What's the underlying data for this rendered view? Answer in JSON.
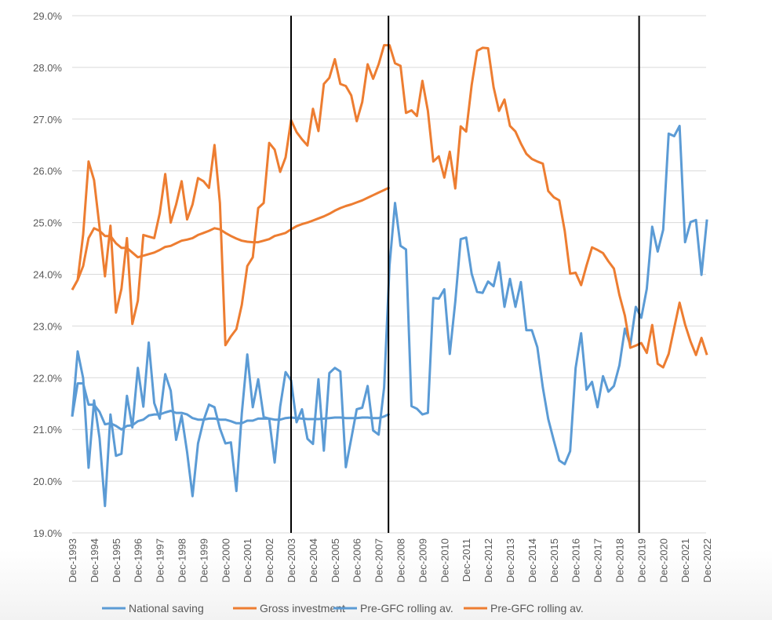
{
  "chart_data": {
    "type": "line",
    "title": "",
    "xlabel": "",
    "ylabel": "",
    "ylim": [
      19,
      29
    ],
    "y_ticks": [
      "19.0%",
      "20.0%",
      "21.0%",
      "22.0%",
      "23.0%",
      "24.0%",
      "25.0%",
      "26.0%",
      "27.0%",
      "28.0%",
      "29.0%"
    ],
    "x_frequency": "quarterly, Dec-1993 to Dec-2022",
    "x_tick_labels": [
      "Dec-1993",
      "Dec-1994",
      "Dec-1995",
      "Dec-1996",
      "Dec-1997",
      "Dec-1998",
      "Dec-1999",
      "Dec-2000",
      "Dec-2001",
      "Dec-2002",
      "Dec-2003",
      "Dec-2004",
      "Dec-2005",
      "Dec-2006",
      "Dec-2007",
      "Dec-2008",
      "Dec-2009",
      "Dec-2010",
      "Dec-2011",
      "Dec-2012",
      "Dec-2013",
      "Dec-2014",
      "Dec-2015",
      "Dec-2016",
      "Dec-2017",
      "Dec-2018",
      "Dec-2019",
      "Dec-2020",
      "Dec-2021",
      "Dec-2022"
    ],
    "grid": "horizontal",
    "legend_position": "bottom",
    "vertical_markers_quarter_index": [
      40,
      57.8,
      103.6
    ],
    "series": [
      {
        "name": "National saving",
        "color": "#5B9BD5",
        "values": [
          21.25,
          22.51,
          21.99,
          20.26,
          21.56,
          20.83,
          19.52,
          21.29,
          20.49,
          20.53,
          21.65,
          21.04,
          22.19,
          21.44,
          22.68,
          21.51,
          21.21,
          22.07,
          21.75,
          20.8,
          21.27,
          20.56,
          19.71,
          20.73,
          21.17,
          21.48,
          21.43,
          21.02,
          20.73,
          20.75,
          19.81,
          21.31,
          22.45,
          21.43,
          21.97,
          21.24,
          21.21,
          20.36,
          21.44,
          22.11,
          21.95,
          21.14,
          21.39,
          20.82,
          20.72,
          21.97,
          20.59,
          22.09,
          22.19,
          22.12,
          20.27,
          20.82,
          21.39,
          21.42,
          21.84,
          20.98,
          20.9,
          21.81,
          24.17,
          25.38,
          24.55,
          24.48,
          21.45,
          21.4,
          21.29,
          21.32,
          23.54,
          23.53,
          23.71,
          22.46,
          23.47,
          24.68,
          24.71,
          24.01,
          23.66,
          23.64,
          23.86,
          23.77,
          24.23,
          23.37,
          23.91,
          23.37,
          23.85,
          22.92,
          22.92,
          22.59,
          21.81,
          21.2,
          20.79,
          20.4,
          20.33,
          20.58,
          22.19,
          22.86,
          21.77,
          21.92,
          21.43,
          22.03,
          21.73,
          21.84,
          22.24,
          22.95,
          22.63,
          23.37,
          23.16,
          23.72,
          24.92,
          24.44,
          24.86,
          26.72,
          26.67,
          26.87,
          24.62,
          25.01,
          25.05,
          23.99,
          25.06
        ]
      },
      {
        "name": "Gross investment",
        "color": "#ED7D31",
        "values": [
          23.7,
          23.89,
          24.77,
          26.18,
          25.82,
          24.91,
          23.96,
          24.94,
          23.26,
          23.72,
          24.7,
          23.04,
          23.49,
          24.76,
          24.73,
          24.7,
          25.18,
          25.94,
          25.0,
          25.35,
          25.8,
          25.06,
          25.35,
          25.86,
          25.8,
          25.67,
          26.5,
          25.38,
          22.63,
          22.8,
          22.94,
          23.41,
          24.16,
          24.33,
          25.28,
          25.38,
          26.54,
          26.41,
          25.98,
          26.26,
          26.98,
          26.75,
          26.61,
          26.49,
          27.2,
          26.77,
          27.68,
          27.8,
          28.16,
          27.68,
          27.64,
          27.46,
          26.96,
          27.33,
          28.06,
          27.78,
          28.06,
          28.43,
          28.43,
          28.08,
          28.03,
          27.12,
          27.17,
          27.06,
          27.74,
          27.16,
          26.18,
          26.28,
          25.87,
          26.37,
          25.66,
          26.86,
          26.76,
          27.66,
          28.32,
          28.38,
          28.37,
          27.62,
          27.16,
          27.38,
          26.87,
          26.76,
          26.53,
          26.33,
          26.23,
          26.18,
          26.14,
          25.61,
          25.49,
          25.43,
          24.84,
          24.01,
          24.03,
          23.79,
          24.17,
          24.52,
          24.47,
          24.41,
          24.25,
          24.11,
          23.6,
          23.2,
          22.58,
          22.62,
          22.67,
          22.48,
          23.02,
          22.27,
          22.2,
          22.46,
          22.96,
          23.45,
          23.03,
          22.7,
          22.44,
          22.77,
          22.44
        ]
      },
      {
        "name": "Pre-GFC rolling av.",
        "color": "#5B9BD5",
        "values": [
          21.25,
          21.89,
          21.89,
          21.48,
          21.48,
          21.34,
          21.1,
          21.12,
          21.07,
          21.0,
          21.07,
          21.08,
          21.16,
          21.19,
          21.27,
          21.29,
          21.29,
          21.33,
          21.36,
          21.32,
          21.32,
          21.29,
          21.22,
          21.19,
          21.19,
          21.21,
          21.21,
          21.19,
          21.19,
          21.16,
          21.12,
          21.12,
          21.17,
          21.17,
          21.21,
          21.21,
          21.21,
          21.19,
          21.19,
          21.22,
          21.23,
          21.22,
          21.21,
          21.2,
          21.2,
          21.2,
          21.21,
          21.22,
          21.23,
          21.23,
          21.22,
          21.22,
          21.22,
          21.23,
          21.23,
          21.22,
          21.22,
          21.25,
          21.3
        ]
      },
      {
        "name": "Pre-GFC rolling av.",
        "color": "#ED7D31",
        "values": [
          23.7,
          23.89,
          24.16,
          24.7,
          24.89,
          24.84,
          24.74,
          24.74,
          24.6,
          24.51,
          24.51,
          24.42,
          24.33,
          24.36,
          24.39,
          24.42,
          24.47,
          24.53,
          24.55,
          24.6,
          24.65,
          24.67,
          24.7,
          24.76,
          24.8,
          24.84,
          24.89,
          24.87,
          24.8,
          24.74,
          24.69,
          24.65,
          24.63,
          24.62,
          24.62,
          24.65,
          24.68,
          24.74,
          24.77,
          24.8,
          24.87,
          24.93,
          24.97,
          25.0,
          25.04,
          25.08,
          25.12,
          25.17,
          25.23,
          25.28,
          25.32,
          25.35,
          25.39,
          25.43,
          25.48,
          25.53,
          25.58,
          25.63,
          25.68
        ]
      }
    ]
  }
}
